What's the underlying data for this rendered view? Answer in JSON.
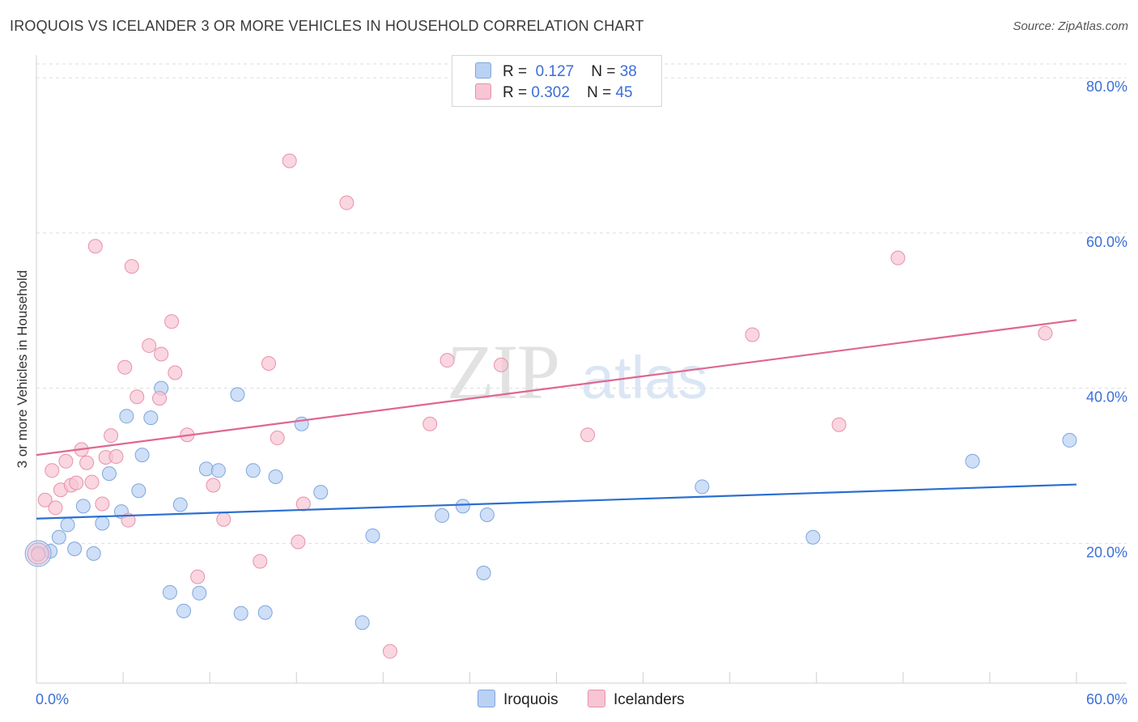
{
  "title": "IROQUOIS VS ICELANDER 3 OR MORE VEHICLES IN HOUSEHOLD CORRELATION CHART",
  "source": "Source: ZipAtlas.com",
  "watermark": {
    "zip": "ZIP",
    "atlas": "atlas"
  },
  "legend": {
    "rows": [
      {
        "r_label": "R =",
        "r_value": "0.127",
        "n_label": "N =",
        "n_value": "38"
      },
      {
        "r_label": "R =",
        "r_value": "0.302",
        "n_label": "N =",
        "n_value": "45"
      }
    ]
  },
  "bottom_legend": [
    "Iroquois",
    "Icelanders"
  ],
  "colors": {
    "iroquois_fill": "#b9d1f3",
    "iroquois_stroke": "#7fa6dd",
    "iroquois_line": "#2a6fd0",
    "icelanders_fill": "#f7c5d3",
    "icelanders_stroke": "#e891ab",
    "icelanders_line": "#e06690",
    "axis_text": "#3a6fd8",
    "grid": "#dddddd"
  },
  "chart_data": {
    "type": "scatter",
    "title": "IROQUOIS VS ICELANDER 3 OR MORE VEHICLES IN HOUSEHOLD CORRELATION CHART",
    "xlabel": "",
    "ylabel": "3 or more Vehicles in Household",
    "xlim": [
      0,
      60
    ],
    "ylim": [
      2,
      82
    ],
    "x_tick_labels": [
      "0.0%",
      "60.0%"
    ],
    "y_ticks": [
      20,
      40,
      60,
      80
    ],
    "y_tick_labels": [
      "20.0%",
      "40.0%",
      "60.0%",
      "80.0%"
    ],
    "grid": "horizontal dashed",
    "legend_position": "top-center",
    "series": [
      {
        "name": "Iroquois",
        "r": 0.127,
        "n": 38,
        "trend": {
          "x0": 0,
          "y0": 23.2,
          "x1": 60,
          "y1": 27.6
        },
        "points": [
          [
            0.1,
            18.8
          ],
          [
            0.8,
            19.0
          ],
          [
            1.3,
            20.8
          ],
          [
            1.8,
            22.4
          ],
          [
            2.2,
            19.3
          ],
          [
            2.7,
            24.8
          ],
          [
            3.3,
            18.7
          ],
          [
            3.8,
            22.6
          ],
          [
            4.2,
            29.0
          ],
          [
            4.9,
            24.1
          ],
          [
            5.2,
            36.4
          ],
          [
            5.9,
            26.8
          ],
          [
            6.1,
            31.4
          ],
          [
            6.6,
            36.2
          ],
          [
            7.2,
            40.0
          ],
          [
            7.7,
            13.7
          ],
          [
            8.3,
            25.0
          ],
          [
            8.5,
            11.3
          ],
          [
            9.4,
            13.6
          ],
          [
            9.8,
            29.6
          ],
          [
            10.5,
            29.4
          ],
          [
            11.6,
            39.2
          ],
          [
            11.8,
            11.0
          ],
          [
            12.5,
            29.4
          ],
          [
            13.2,
            11.1
          ],
          [
            13.8,
            28.6
          ],
          [
            15.3,
            35.4
          ],
          [
            16.4,
            26.6
          ],
          [
            18.8,
            9.8
          ],
          [
            19.4,
            21.0
          ],
          [
            23.4,
            23.6
          ],
          [
            24.6,
            24.8
          ],
          [
            25.8,
            16.2
          ],
          [
            26.0,
            23.7
          ],
          [
            38.4,
            27.3
          ],
          [
            44.8,
            20.8
          ],
          [
            54.0,
            30.6
          ],
          [
            59.6,
            33.3
          ]
        ]
      },
      {
        "name": "Icelanders",
        "r": 0.302,
        "n": 45,
        "trend": {
          "x0": 0,
          "y0": 31.4,
          "x1": 60,
          "y1": 48.8
        },
        "points": [
          [
            0.1,
            18.6
          ],
          [
            0.5,
            25.6
          ],
          [
            0.9,
            29.4
          ],
          [
            1.1,
            24.6
          ],
          [
            1.4,
            26.9
          ],
          [
            1.7,
            30.6
          ],
          [
            2.0,
            27.5
          ],
          [
            2.3,
            27.8
          ],
          [
            2.6,
            32.1
          ],
          [
            2.9,
            30.4
          ],
          [
            3.2,
            27.9
          ],
          [
            3.4,
            58.3
          ],
          [
            3.8,
            25.1
          ],
          [
            4.0,
            31.1
          ],
          [
            4.3,
            33.9
          ],
          [
            4.6,
            31.2
          ],
          [
            5.1,
            42.7
          ],
          [
            5.3,
            23.0
          ],
          [
            5.5,
            55.7
          ],
          [
            5.8,
            38.9
          ],
          [
            6.5,
            45.5
          ],
          [
            7.2,
            44.4
          ],
          [
            7.1,
            38.7
          ],
          [
            7.8,
            48.6
          ],
          [
            8.0,
            42.0
          ],
          [
            8.7,
            34.0
          ],
          [
            9.3,
            15.7
          ],
          [
            10.2,
            27.5
          ],
          [
            10.8,
            23.1
          ],
          [
            12.9,
            17.7
          ],
          [
            13.4,
            43.2
          ],
          [
            13.9,
            33.6
          ],
          [
            14.6,
            69.3
          ],
          [
            15.1,
            20.2
          ],
          [
            15.4,
            25.1
          ],
          [
            17.9,
            63.9
          ],
          [
            20.4,
            6.1
          ],
          [
            22.7,
            35.4
          ],
          [
            23.7,
            43.6
          ],
          [
            26.8,
            43.0
          ],
          [
            31.8,
            34.0
          ],
          [
            41.3,
            46.9
          ],
          [
            46.3,
            35.3
          ],
          [
            49.7,
            56.8
          ],
          [
            58.2,
            47.1
          ]
        ]
      }
    ]
  }
}
